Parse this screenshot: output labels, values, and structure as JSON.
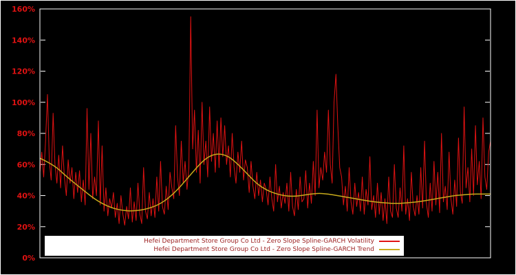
{
  "chart": {
    "background": "#000000",
    "border_color": "#ffffff",
    "tick_label_color": "#e01212",
    "volatility_color": "#e01212",
    "trend_color": "#c9ac1b"
  },
  "legend": {
    "rows": [
      {
        "label": "Hefei Department Store Group Co Ltd - Zero Slope Spline-GARCH Volatility",
        "color": "#e01212"
      },
      {
        "label": "Hefei Department Store Group Co Ltd - Zero Slope Spline-GARCH Trend",
        "color": "#c9ac1b"
      }
    ]
  },
  "chart_data": {
    "type": "line",
    "title": "",
    "xlabel": "",
    "ylabel": "",
    "ylim": [
      0,
      1.6
    ],
    "grid": false,
    "legend_position": "bottom-center",
    "y_tick_values": [
      0,
      0.2,
      0.4,
      0.6,
      0.8,
      1.0,
      1.2,
      1.4,
      1.6
    ],
    "y_tick_labels": [
      "0%",
      "20%",
      "40%",
      "60%",
      "80%",
      "100%",
      "120%",
      "140%",
      "160%"
    ],
    "series": [
      {
        "name": "Hefei Department Store Group Co Ltd - Zero Slope Spline-GARCH Volatility",
        "color": "#e01212",
        "values": [
          0.55,
          0.68,
          0.52,
          0.75,
          1.05,
          0.62,
          0.5,
          0.93,
          0.6,
          0.48,
          0.66,
          0.45,
          0.72,
          0.52,
          0.4,
          0.63,
          0.48,
          0.58,
          0.38,
          0.55,
          0.42,
          0.56,
          0.36,
          0.5,
          0.34,
          0.96,
          0.44,
          0.8,
          0.38,
          0.52,
          0.4,
          0.88,
          0.34,
          0.72,
          0.3,
          0.45,
          0.27,
          0.38,
          0.32,
          0.42,
          0.26,
          0.35,
          0.22,
          0.4,
          0.28,
          0.21,
          0.33,
          0.25,
          0.45,
          0.23,
          0.36,
          0.24,
          0.48,
          0.28,
          0.22,
          0.58,
          0.3,
          0.25,
          0.42,
          0.27,
          0.38,
          0.26,
          0.52,
          0.3,
          0.62,
          0.33,
          0.28,
          0.46,
          0.31,
          0.55,
          0.45,
          0.38,
          0.85,
          0.52,
          0.4,
          0.75,
          0.48,
          0.62,
          0.44,
          0.58,
          1.55,
          0.7,
          0.95,
          0.55,
          0.82,
          0.48,
          1.0,
          0.6,
          0.75,
          0.52,
          0.97,
          0.62,
          0.8,
          0.55,
          0.88,
          0.58,
          0.9,
          0.65,
          0.85,
          0.6,
          0.72,
          0.52,
          0.8,
          0.58,
          0.48,
          0.68,
          0.55,
          0.75,
          0.5,
          0.63,
          0.58,
          0.42,
          0.62,
          0.46,
          0.38,
          0.55,
          0.4,
          0.5,
          0.36,
          0.48,
          0.44,
          0.34,
          0.52,
          0.38,
          0.3,
          0.6,
          0.36,
          0.46,
          0.32,
          0.42,
          0.35,
          0.48,
          0.3,
          0.55,
          0.33,
          0.27,
          0.44,
          0.31,
          0.52,
          0.36,
          0.38,
          0.56,
          0.32,
          0.48,
          0.35,
          0.62,
          0.4,
          0.95,
          0.45,
          0.58,
          0.5,
          0.68,
          0.55,
          0.95,
          0.6,
          0.48,
          1.0,
          1.18,
          0.85,
          0.58,
          0.52,
          0.34,
          0.46,
          0.3,
          0.58,
          0.36,
          0.28,
          0.48,
          0.33,
          0.42,
          0.3,
          0.52,
          0.28,
          0.44,
          0.34,
          0.65,
          0.31,
          0.4,
          0.26,
          0.48,
          0.28,
          0.42,
          0.24,
          0.38,
          0.22,
          0.52,
          0.3,
          0.26,
          0.6,
          0.32,
          0.26,
          0.45,
          0.3,
          0.72,
          0.28,
          0.38,
          0.24,
          0.55,
          0.33,
          0.27,
          0.4,
          0.28,
          0.58,
          0.32,
          0.75,
          0.35,
          0.26,
          0.48,
          0.3,
          0.62,
          0.34,
          0.55,
          0.29,
          0.8,
          0.36,
          0.46,
          0.31,
          0.68,
          0.38,
          0.28,
          0.5,
          0.33,
          0.77,
          0.42,
          0.35,
          0.97,
          0.45,
          0.58,
          0.36,
          0.7,
          0.4,
          0.85,
          0.47,
          0.62,
          0.38,
          0.9,
          0.52,
          0.44,
          0.68,
          0.75
        ]
      },
      {
        "name": "Hefei Department Store Group Co Ltd - Zero Slope Spline-GARCH Trend",
        "color": "#c9ac1b",
        "x": [
          0.0,
          0.03,
          0.06,
          0.09,
          0.12,
          0.15,
          0.18,
          0.21,
          0.24,
          0.27,
          0.3,
          0.33,
          0.36,
          0.38,
          0.4,
          0.42,
          0.44,
          0.46,
          0.48,
          0.5,
          0.52,
          0.54,
          0.56,
          0.58,
          0.6,
          0.62,
          0.64,
          0.66,
          0.68,
          0.7,
          0.72,
          0.74,
          0.76,
          0.78,
          0.8,
          0.82,
          0.84,
          0.86,
          0.88,
          0.9,
          0.92,
          0.94,
          0.96,
          0.98,
          1.0
        ],
        "values": [
          0.64,
          0.6,
          0.52,
          0.45,
          0.38,
          0.33,
          0.305,
          0.3,
          0.315,
          0.35,
          0.42,
          0.52,
          0.62,
          0.66,
          0.67,
          0.65,
          0.6,
          0.54,
          0.48,
          0.44,
          0.415,
          0.4,
          0.395,
          0.4,
          0.41,
          0.415,
          0.41,
          0.4,
          0.39,
          0.38,
          0.37,
          0.36,
          0.355,
          0.35,
          0.35,
          0.355,
          0.36,
          0.37,
          0.38,
          0.39,
          0.4,
          0.405,
          0.41,
          0.41,
          0.41
        ]
      }
    ]
  }
}
